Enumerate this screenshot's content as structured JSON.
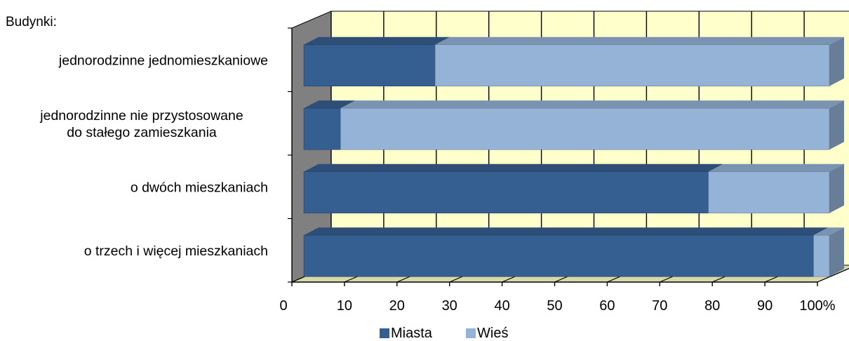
{
  "chart_data": {
    "type": "bar",
    "orientation": "horizontal",
    "stacking": "percent",
    "style": "3d",
    "title": "",
    "ylabel": "Budynki:",
    "xlabel": "",
    "categories": [
      [
        "jednorodzinne jednomieszkaniowe"
      ],
      [
        "jednorodzinne nie przystosowane",
        "do stałego zamieszkania"
      ],
      [
        "o dwóch mieszkaniach"
      ],
      [
        "o trzech i więcej mieszkaniach"
      ]
    ],
    "series": [
      {
        "name": "Miasta",
        "color": "#365f91",
        "values": [
          25,
          7,
          77,
          97
        ]
      },
      {
        "name": "Wieś",
        "color": "#95b3d7",
        "values": [
          75,
          93,
          23,
          3
        ]
      }
    ],
    "xlim": [
      0,
      100
    ],
    "x_ticks": [
      "0",
      "10",
      "20",
      "30",
      "40",
      "50",
      "60",
      "70",
      "80",
      "90",
      "100%"
    ],
    "grid": true,
    "legend": "bottom",
    "colors": {
      "wall": "#ffffcc",
      "floor": "#d8d8a8",
      "side_wall": "#808080"
    }
  }
}
